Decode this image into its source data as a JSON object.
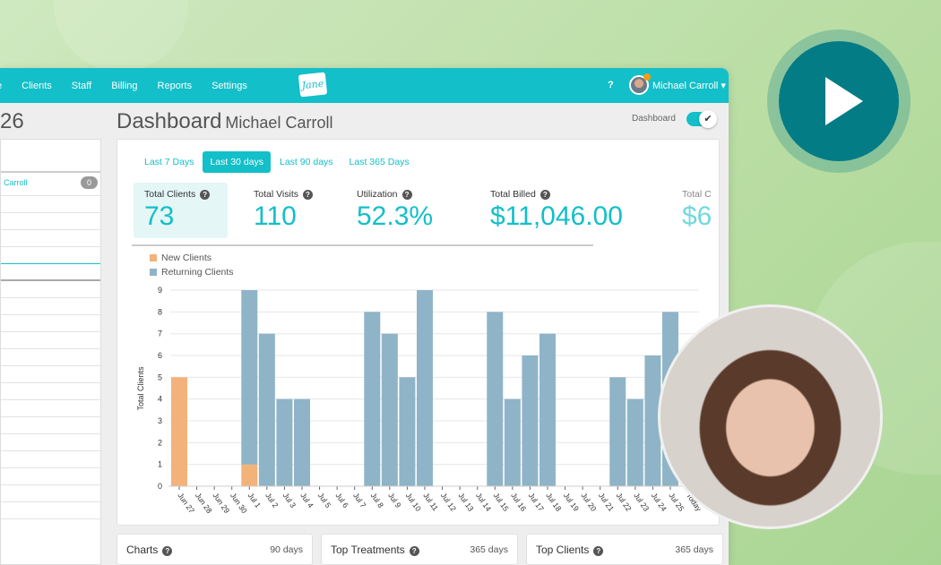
{
  "nav": {
    "items": [
      "e",
      "Clients",
      "Staff",
      "Billing",
      "Reports",
      "Settings"
    ],
    "logo": "Jane",
    "help": "?",
    "user": "Michael Carroll ▾"
  },
  "left": {
    "title_fragment": "26",
    "row_name": "Carroll",
    "row_badge": "0"
  },
  "page": {
    "title": "Dashboard",
    "subtitle": "Michael Carroll",
    "toggle_label": "Dashboard",
    "toggle_on": true
  },
  "tabs": [
    {
      "label": "Last 7 Days"
    },
    {
      "label": "Last 30 days",
      "active": true
    },
    {
      "label": "Last 90 days"
    },
    {
      "label": "Last 365 Days"
    }
  ],
  "stats": [
    {
      "label": "Total Clients",
      "value": "73"
    },
    {
      "label": "Total Visits",
      "value": "110"
    },
    {
      "label": "Utilization",
      "value": "52.3%"
    },
    {
      "label": "Total Billed",
      "value": "$11,046.00"
    },
    {
      "label": "Total C",
      "value": "$6"
    }
  ],
  "colors": {
    "accent": "#13bfc8",
    "new": "#f2b27a",
    "returning": "#8fb4c7"
  },
  "chart_data": {
    "type": "bar",
    "stacked": true,
    "ylabel": "Total Clients",
    "ylim": [
      0,
      9
    ],
    "yticks": [
      0,
      1,
      2,
      3,
      4,
      5,
      6,
      7,
      8,
      9
    ],
    "legend_position": "top-left",
    "categories": [
      "Jun 27",
      "Jun 28",
      "Jun 29",
      "Jun 30",
      "Jul 1",
      "Jul 2",
      "Jul 3",
      "Jul 4",
      "Jul 5",
      "Jul 6",
      "Jul 7",
      "Jul 8",
      "Jul 9",
      "Jul 10",
      "Jul 11",
      "Jul 12",
      "Jul 13",
      "Jul 14",
      "Jul 15",
      "Jul 16",
      "Jul 17",
      "Jul 18",
      "Jul 19",
      "Jul 20",
      "Jul 21",
      "Jul 22",
      "Jul 23",
      "Jul 24",
      "Jul 25",
      "Today"
    ],
    "series": [
      {
        "name": "New Clients",
        "values": [
          5,
          0,
          0,
          0,
          1,
          0,
          0,
          0,
          0,
          0,
          0,
          0,
          0,
          0,
          0,
          0,
          0,
          0,
          0,
          0,
          0,
          0,
          0,
          0,
          0,
          0,
          0,
          0,
          0,
          0
        ]
      },
      {
        "name": "Returning Clients",
        "values": [
          0,
          0,
          0,
          0,
          8,
          7,
          4,
          4,
          0,
          0,
          0,
          8,
          7,
          5,
          9,
          0,
          0,
          0,
          8,
          4,
          6,
          7,
          0,
          0,
          0,
          5,
          4,
          6,
          8,
          0
        ]
      }
    ]
  },
  "bottom": [
    {
      "title": "Charts",
      "range": "90 days"
    },
    {
      "title": "Top Treatments",
      "range": "365 days"
    },
    {
      "title": "Top Clients",
      "range": "365 days"
    }
  ],
  "overlay": {
    "play_icon": "play-icon"
  }
}
